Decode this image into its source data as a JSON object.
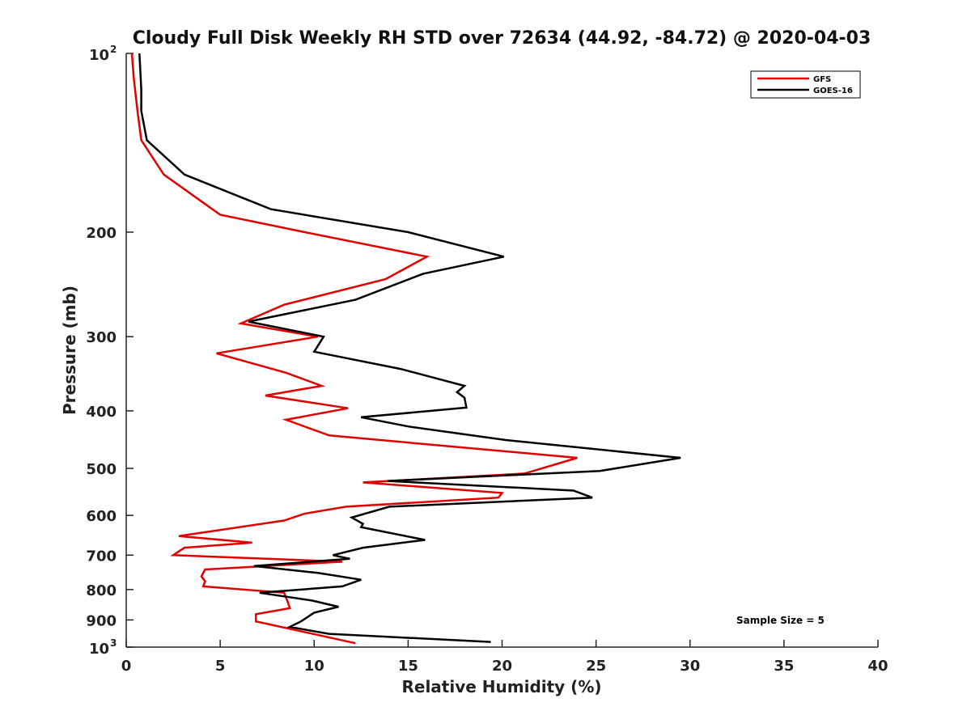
{
  "chart_data": {
    "type": "line",
    "title": "Cloudy Full Disk Weekly RH STD over 72634 (44.92, -84.72) @ 2020-04-03",
    "xlabel": "Relative Humidity (%)",
    "ylabel": "Pressure (mb)",
    "xlim": [
      0,
      40
    ],
    "ylim": [
      100,
      1000
    ],
    "yscale": "log",
    "y_reversed": true,
    "x_ticks": [
      "0",
      "5",
      "10",
      "15",
      "20",
      "25",
      "30",
      "35",
      "40"
    ],
    "y_ticks": [
      {
        "value": 100,
        "label": "10",
        "exponent": "2"
      },
      {
        "value": 200,
        "label": "200"
      },
      {
        "value": 300,
        "label": "300"
      },
      {
        "value": 400,
        "label": "400"
      },
      {
        "value": 500,
        "label": "500"
      },
      {
        "value": 600,
        "label": "600"
      },
      {
        "value": 700,
        "label": "700"
      },
      {
        "value": 800,
        "label": "800"
      },
      {
        "value": 900,
        "label": "900"
      },
      {
        "value": 1000,
        "label": "10",
        "exponent": "3"
      }
    ],
    "grid": false,
    "legend_position": "top-right",
    "annotation": "Sample Size = 5",
    "series": [
      {
        "name": "GFS",
        "color": "#e00000",
        "points": [
          [
            0.3,
            100
          ],
          [
            0.4,
            110
          ],
          [
            0.6,
            125
          ],
          [
            0.8,
            140
          ],
          [
            2.0,
            160
          ],
          [
            5.0,
            187
          ],
          [
            9.5,
            200
          ],
          [
            16.0,
            220
          ],
          [
            13.8,
            240
          ],
          [
            8.4,
            265
          ],
          [
            6.1,
            285
          ],
          [
            10.2,
            300
          ],
          [
            4.8,
            320
          ],
          [
            8.5,
            345
          ],
          [
            10.4,
            363
          ],
          [
            7.4,
            377
          ],
          [
            11.8,
            396
          ],
          [
            8.5,
            414
          ],
          [
            10.8,
            440
          ],
          [
            24.0,
            480
          ],
          [
            21.2,
            510
          ],
          [
            12.6,
            528
          ],
          [
            20.0,
            550
          ],
          [
            19.8,
            560
          ],
          [
            11.7,
            580
          ],
          [
            9.5,
            596
          ],
          [
            8.4,
            612
          ],
          [
            2.8,
            650
          ],
          [
            6.7,
            667
          ],
          [
            3.1,
            680
          ],
          [
            2.5,
            700
          ],
          [
            11.5,
            718
          ],
          [
            4.2,
            740
          ],
          [
            4.0,
            760
          ],
          [
            4.2,
            775
          ],
          [
            4.1,
            790
          ],
          [
            8.4,
            810
          ],
          [
            8.6,
            840
          ],
          [
            8.7,
            860
          ],
          [
            6.9,
            880
          ],
          [
            6.9,
            905
          ],
          [
            12.2,
            985
          ]
        ]
      },
      {
        "name": "GOES-16",
        "color": "#000000",
        "points": [
          [
            0.7,
            100
          ],
          [
            0.8,
            115
          ],
          [
            0.8,
            125
          ],
          [
            1.1,
            140
          ],
          [
            3.1,
            160
          ],
          [
            7.7,
            183
          ],
          [
            15.0,
            200
          ],
          [
            20.1,
            220
          ],
          [
            15.8,
            235
          ],
          [
            12.2,
            260
          ],
          [
            6.5,
            283
          ],
          [
            10.5,
            300
          ],
          [
            10.0,
            318
          ],
          [
            14.6,
            340
          ],
          [
            18.0,
            363
          ],
          [
            17.6,
            372
          ],
          [
            18.0,
            380
          ],
          [
            18.1,
            395
          ],
          [
            12.5,
            410
          ],
          [
            15.0,
            425
          ],
          [
            20.2,
            448
          ],
          [
            29.5,
            480
          ],
          [
            25.2,
            505
          ],
          [
            13.9,
            525
          ],
          [
            23.8,
            545
          ],
          [
            24.8,
            560
          ],
          [
            14.0,
            580
          ],
          [
            12.0,
            605
          ],
          [
            12.6,
            620
          ],
          [
            12.5,
            628
          ],
          [
            15.9,
            660
          ],
          [
            12.6,
            680
          ],
          [
            11.0,
            700
          ],
          [
            11.9,
            710
          ],
          [
            6.8,
            730
          ],
          [
            10.2,
            750
          ],
          [
            12.5,
            770
          ],
          [
            11.5,
            790
          ],
          [
            7.1,
            810
          ],
          [
            9.9,
            835
          ],
          [
            11.3,
            855
          ],
          [
            10.0,
            875
          ],
          [
            9.3,
            905
          ],
          [
            8.7,
            925
          ],
          [
            10.8,
            950
          ],
          [
            19.4,
            980
          ]
        ]
      }
    ]
  }
}
